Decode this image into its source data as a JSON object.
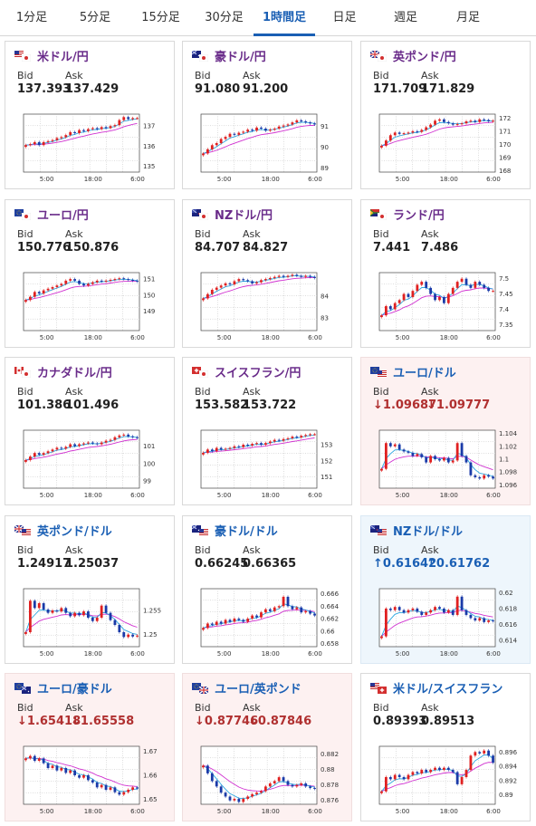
{
  "tabs": [
    "1分足",
    "5分足",
    "15分足",
    "30分足",
    "1時間足",
    "日足",
    "週足",
    "月足"
  ],
  "active_tab": "1時間足",
  "labels": {
    "bid": "Bid",
    "ask": "Ask"
  },
  "colors": {
    "accent": "#1a5fb4",
    "pair_name_purple": "#6a2c8a",
    "pair_name_blue": "#1a5fb4",
    "price_up": "#1a5fb4",
    "price_down": "#b03030",
    "card_down_bg": "#fdf1f1",
    "card_up_bg": "#eef6fc",
    "candle_up": "#e02020",
    "candle_down": "#1a3aa8",
    "ma_short": "#2aa6e0",
    "ma_long": "#d030d0"
  },
  "pairs": [
    {
      "name": "米ドル/円",
      "flags": [
        "us",
        "jp"
      ],
      "bid": "137.393",
      "ask": "137.429",
      "trend": "none",
      "status": "neutral",
      "chart": {
        "x_ticks": [
          "5:00",
          "18:00",
          "6:00"
        ],
        "y_ticks": [
          "137",
          "136",
          "135"
        ],
        "y_range": [
          134.7,
          137.6
        ],
        "close": [
          136.05,
          136.1,
          136.2,
          136.05,
          136.2,
          136.25,
          136.3,
          136.4,
          136.45,
          136.55,
          136.7,
          136.65,
          136.8,
          136.75,
          136.85,
          136.9,
          136.85,
          136.95,
          136.9,
          137.0,
          137.05,
          137.3,
          137.45,
          137.35,
          137.4,
          137.4
        ]
      }
    },
    {
      "name": "豪ドル/円",
      "flags": [
        "au",
        "jp"
      ],
      "bid": "91.080",
      "ask": "91.200",
      "trend": "none",
      "status": "neutral",
      "chart": {
        "x_ticks": [
          "5:00",
          "18:00",
          "6:00"
        ],
        "y_ticks": [
          "91",
          "90",
          "89"
        ],
        "y_range": [
          88.8,
          91.6
        ],
        "close": [
          89.7,
          89.9,
          90.1,
          90.2,
          90.4,
          90.5,
          90.65,
          90.6,
          90.7,
          90.75,
          90.85,
          90.8,
          90.95,
          90.9,
          90.8,
          90.85,
          90.9,
          91.0,
          91.05,
          91.1,
          91.2,
          91.3,
          91.25,
          91.2,
          91.15,
          91.1
        ]
      }
    },
    {
      "name": "英ポンド/円",
      "flags": [
        "gb",
        "jp"
      ],
      "bid": "171.709",
      "ask": "171.829",
      "trend": "none",
      "status": "neutral",
      "chart": {
        "x_ticks": [
          "5:00",
          "18:00",
          "6:00"
        ],
        "y_ticks": [
          "172",
          "171",
          "170",
          "169",
          "168"
        ],
        "y_range": [
          167.9,
          172.3
        ],
        "close": [
          169.9,
          170.3,
          170.7,
          170.9,
          170.8,
          170.85,
          170.9,
          171.0,
          170.95,
          171.1,
          171.3,
          171.5,
          171.8,
          171.9,
          171.7,
          171.6,
          171.5,
          171.55,
          171.6,
          171.75,
          171.8,
          171.7,
          171.9,
          171.85,
          171.75,
          171.8
        ]
      }
    },
    {
      "name": "ユーロ/円",
      "flags": [
        "eu",
        "jp"
      ],
      "bid": "150.776",
      "ask": "150.876",
      "trend": "none",
      "status": "neutral",
      "chart": {
        "x_ticks": [
          "5:00",
          "18:00",
          "6:00"
        ],
        "y_ticks": [
          "151",
          "150",
          "149"
        ],
        "y_range": [
          147.8,
          151.4
        ],
        "close": [
          149.7,
          149.9,
          150.2,
          150.1,
          150.3,
          150.4,
          150.5,
          150.6,
          150.7,
          150.9,
          151.0,
          150.9,
          150.7,
          150.6,
          150.7,
          150.8,
          150.9,
          150.85,
          150.9,
          150.95,
          151.0,
          151.05,
          151.0,
          150.95,
          150.9,
          150.85
        ]
      }
    },
    {
      "name": "NZドル/円",
      "flags": [
        "nz",
        "jp"
      ],
      "bid": "84.707",
      "ask": "84.827",
      "trend": "none",
      "status": "neutral",
      "chart": {
        "x_ticks": [
          "5:00",
          "18:00",
          "6:00"
        ],
        "y_ticks": [
          "84",
          "83"
        ],
        "y_range": [
          82.4,
          85.1
        ],
        "close": [
          83.9,
          84.1,
          84.3,
          84.4,
          84.5,
          84.6,
          84.55,
          84.7,
          84.8,
          84.75,
          84.7,
          84.6,
          84.65,
          84.75,
          84.8,
          84.85,
          84.9,
          84.95,
          84.9,
          84.95,
          85.0,
          84.95,
          84.9,
          84.95,
          84.9,
          84.85
        ]
      }
    },
    {
      "name": "ランド/円",
      "flags": [
        "za",
        "jp"
      ],
      "bid": "7.441",
      "ask": "7.486",
      "trend": "none",
      "status": "neutral",
      "chart": {
        "x_ticks": [
          "5:00",
          "18:00",
          "6:00"
        ],
        "y_ticks": [
          "7.5",
          "7.45",
          "7.4",
          "7.35"
        ],
        "y_range": [
          7.33,
          7.52
        ],
        "close": [
          7.38,
          7.41,
          7.4,
          7.42,
          7.43,
          7.45,
          7.44,
          7.46,
          7.48,
          7.49,
          7.47,
          7.45,
          7.43,
          7.44,
          7.42,
          7.45,
          7.47,
          7.49,
          7.5,
          7.48,
          7.47,
          7.49,
          7.48,
          7.47,
          7.46,
          7.46
        ]
      }
    },
    {
      "name": "カナダドル/円",
      "flags": [
        "ca",
        "jp"
      ],
      "bid": "101.386",
      "ask": "101.496",
      "trend": "none",
      "status": "neutral",
      "chart": {
        "x_ticks": [
          "5:00",
          "18:00",
          "6:00"
        ],
        "y_ticks": [
          "101",
          "100",
          "99"
        ],
        "y_range": [
          98.6,
          101.9
        ],
        "close": [
          100.2,
          100.4,
          100.6,
          100.5,
          100.6,
          100.7,
          100.8,
          100.9,
          100.85,
          100.95,
          101.1,
          101.0,
          101.1,
          101.15,
          101.2,
          101.15,
          101.1,
          101.2,
          101.3,
          101.35,
          101.5,
          101.6,
          101.65,
          101.55,
          101.5,
          101.45
        ]
      }
    },
    {
      "name": "スイスフラン/円",
      "flags": [
        "ch",
        "jp"
      ],
      "bid": "153.582",
      "ask": "153.722",
      "trend": "none",
      "status": "neutral",
      "chart": {
        "x_ticks": [
          "5:00",
          "18:00",
          "6:00"
        ],
        "y_ticks": [
          "153",
          "152",
          "151"
        ],
        "y_range": [
          150.3,
          153.9
        ],
        "close": [
          152.5,
          152.7,
          152.6,
          152.8,
          152.7,
          152.75,
          152.8,
          152.9,
          152.85,
          153.0,
          152.95,
          153.05,
          153.1,
          153.0,
          153.1,
          153.2,
          153.3,
          153.25,
          153.35,
          153.4,
          153.5,
          153.45,
          153.55,
          153.6,
          153.65,
          153.65
        ]
      }
    },
    {
      "name": "ユーロ/ドル",
      "flags": [
        "eu",
        "us"
      ],
      "bid": "1.09687",
      "ask": "1.09777",
      "trend": "down",
      "status": "down",
      "chart": {
        "x_ticks": [
          "5:00",
          "18:00",
          "6:00"
        ],
        "y_ticks": [
          "1.104",
          "1.102",
          "1.1",
          "1.098",
          "1.096"
        ],
        "y_range": [
          1.0955,
          1.1045
        ],
        "close": [
          1.0985,
          1.1025,
          1.102,
          1.1023,
          1.1015,
          1.1012,
          1.101,
          1.1005,
          1.1008,
          1.1003,
          1.0995,
          1.1005,
          1.1,
          1.0998,
          1.1002,
          1.0995,
          1.0998,
          1.1025,
          1.1005,
          1.0995,
          1.0975,
          1.0972,
          1.097,
          1.0975,
          1.0973,
          1.097
        ]
      }
    },
    {
      "name": "英ポンド/ドル",
      "flags": [
        "gb",
        "us"
      ],
      "bid": "1.24917",
      "ask": "1.25037",
      "trend": "none",
      "status": "neutral",
      "chart": {
        "x_ticks": [
          "5:00",
          "18:00",
          "6:00"
        ],
        "y_ticks": [
          "1.255",
          "1.25"
        ],
        "y_range": [
          1.2475,
          1.2595
        ],
        "close": [
          1.2505,
          1.257,
          1.2555,
          1.2565,
          1.2552,
          1.2545,
          1.255,
          1.2548,
          1.2555,
          1.2545,
          1.2538,
          1.2545,
          1.254,
          1.2548,
          1.2535,
          1.2528,
          1.2535,
          1.256,
          1.2545,
          1.253,
          1.252,
          1.2505,
          1.2495,
          1.25,
          1.2496,
          1.2498
        ]
      }
    },
    {
      "name": "豪ドル/ドル",
      "flags": [
        "au",
        "us"
      ],
      "bid": "0.66245",
      "ask": "0.66365",
      "trend": "none",
      "status": "neutral",
      "chart": {
        "x_ticks": [
          "5:00",
          "18:00",
          "6:00"
        ],
        "y_ticks": [
          "0.666",
          "0.664",
          "0.662",
          "0.66",
          "0.658"
        ],
        "y_range": [
          0.6575,
          0.6668
        ],
        "close": [
          0.6605,
          0.6612,
          0.661,
          0.6615,
          0.6612,
          0.6618,
          0.6615,
          0.662,
          0.6618,
          0.6615,
          0.662,
          0.6625,
          0.6622,
          0.663,
          0.6635,
          0.6632,
          0.6638,
          0.664,
          0.6655,
          0.664,
          0.6635,
          0.6638,
          0.663,
          0.6632,
          0.6628,
          0.6625
        ]
      }
    },
    {
      "name": "NZドル/ドル",
      "flags": [
        "nz",
        "us"
      ],
      "bid": "0.61642",
      "ask": "0.61762",
      "trend": "up",
      "status": "up",
      "chart": {
        "x_ticks": [
          "5:00",
          "18:00",
          "6:00"
        ],
        "y_ticks": [
          "0.62",
          "0.618",
          "0.616",
          "0.614"
        ],
        "y_range": [
          0.6132,
          0.6205
        ],
        "close": [
          0.6145,
          0.618,
          0.6178,
          0.6182,
          0.6178,
          0.6175,
          0.6178,
          0.618,
          0.6176,
          0.6172,
          0.6175,
          0.6178,
          0.6182,
          0.618,
          0.6175,
          0.6178,
          0.6172,
          0.6195,
          0.6178,
          0.6172,
          0.6168,
          0.6165,
          0.6168,
          0.6163,
          0.6165,
          0.6164
        ]
      }
    },
    {
      "name": "ユーロ/豪ドル",
      "flags": [
        "eu",
        "au"
      ],
      "bid": "1.65418",
      "ask": "1.65558",
      "trend": "down",
      "status": "down",
      "chart": {
        "x_ticks": [
          "5:00",
          "18:00",
          "6:00"
        ],
        "y_ticks": [
          "1.67",
          "1.66",
          "1.65"
        ],
        "y_range": [
          1.648,
          1.672
        ],
        "close": [
          1.667,
          1.668,
          1.666,
          1.667,
          1.665,
          1.663,
          1.664,
          1.662,
          1.663,
          1.661,
          1.662,
          1.66,
          1.659,
          1.66,
          1.658,
          1.657,
          1.655,
          1.656,
          1.654,
          1.655,
          1.653,
          1.652,
          1.653,
          1.654,
          1.655,
          1.6545
        ]
      }
    },
    {
      "name": "ユーロ/英ポンド",
      "flags": [
        "eu",
        "gb"
      ],
      "bid": "0.87746",
      "ask": "0.87846",
      "trend": "down",
      "status": "down",
      "chart": {
        "x_ticks": [
          "5:00",
          "18:00",
          "6:00"
        ],
        "y_ticks": [
          "0.882",
          "0.88",
          "0.878",
          "0.876"
        ],
        "y_range": [
          0.8755,
          0.883
        ],
        "close": [
          0.8805,
          0.8795,
          0.8785,
          0.8778,
          0.877,
          0.8765,
          0.876,
          0.8762,
          0.8758,
          0.8762,
          0.8765,
          0.8768,
          0.877,
          0.8772,
          0.8778,
          0.8782,
          0.8785,
          0.879,
          0.8785,
          0.878,
          0.8778,
          0.878,
          0.8782,
          0.8778,
          0.8776,
          0.8775
        ]
      }
    },
    {
      "name": "米ドル/スイスフラン",
      "flags": [
        "us",
        "ch"
      ],
      "bid": "0.89393",
      "ask": "0.89513",
      "trend": "none",
      "status": "neutral",
      "chart": {
        "x_ticks": [
          "5:00",
          "18:00",
          "6:00"
        ],
        "y_ticks": [
          "0.896",
          "0.894",
          "0.892",
          "0.89"
        ],
        "y_range": [
          0.8887,
          0.8968
        ],
        "close": [
          0.8905,
          0.8925,
          0.8922,
          0.8928,
          0.8925,
          0.8922,
          0.8928,
          0.8932,
          0.893,
          0.8935,
          0.8932,
          0.8935,
          0.8938,
          0.8935,
          0.8938,
          0.8935,
          0.8932,
          0.8915,
          0.8925,
          0.8935,
          0.8955,
          0.896,
          0.8958,
          0.8962,
          0.8955,
          0.8945
        ]
      }
    }
  ]
}
